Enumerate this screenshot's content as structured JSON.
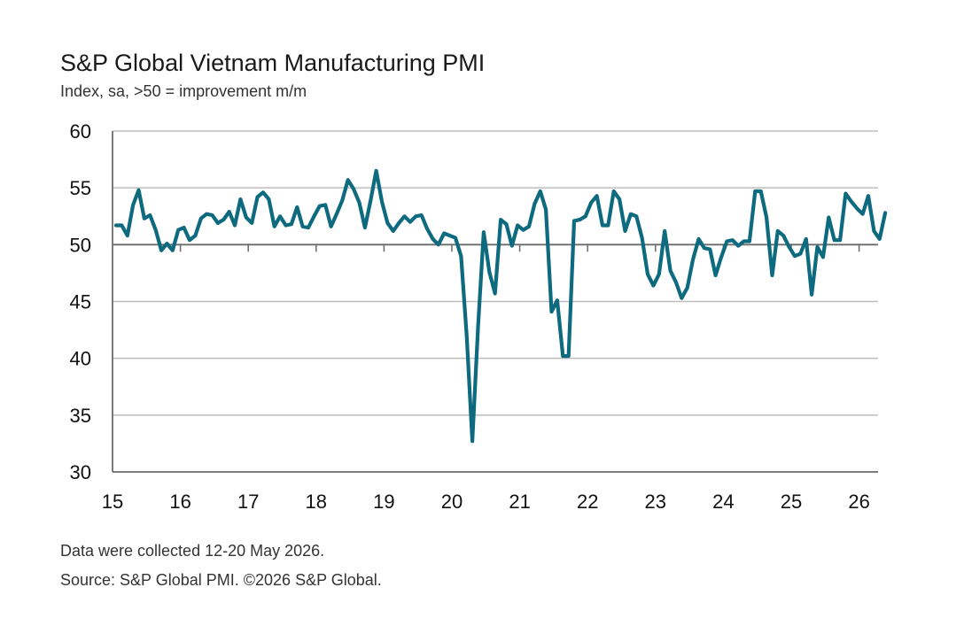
{
  "chart_data": {
    "type": "line",
    "title": "S&P Global Vietnam Manufacturing PMI",
    "subtitle": "Index, sa, >50 = improvement m/m",
    "footnote": "Data were collected 12-20 May 2026.",
    "source": "Source: S&P Global PMI. ©2026 S&P Global.",
    "xlabel": "",
    "ylabel": "",
    "ylim": [
      30,
      60
    ],
    "y_ticks": [
      60,
      55,
      50,
      45,
      40,
      35,
      30
    ],
    "x_ticks": [
      "15",
      "16",
      "17",
      "18",
      "19",
      "20",
      "21",
      "22",
      "23",
      "24",
      "25",
      "26"
    ],
    "x_range": [
      "2015-01",
      "2026-05"
    ],
    "grid": "horizontal",
    "legend": "none",
    "line_color": "#0e6a7e",
    "series": [
      {
        "values": [
          51.7,
          51.7,
          50.8,
          53.5,
          54.8,
          52.3,
          52.6,
          51.3,
          49.5,
          50.1,
          49.5,
          51.3,
          51.5,
          50.4,
          50.8,
          52.3,
          52.7,
          52.6,
          51.9,
          52.2,
          52.9,
          51.7,
          54.0,
          52.4,
          51.9,
          54.2,
          54.6,
          54.0,
          51.6,
          52.5,
          51.7,
          51.8,
          53.3,
          51.6,
          51.5,
          52.5,
          53.4,
          53.5,
          51.6,
          52.7,
          53.9,
          55.7,
          54.9,
          53.7,
          51.5,
          53.9,
          56.5,
          53.8,
          51.9,
          51.2,
          51.9,
          52.5,
          52.0,
          52.5,
          52.6,
          51.4,
          50.5,
          50.0,
          51.0,
          50.8,
          50.6,
          49.0,
          41.9,
          32.7,
          42.7,
          51.1,
          47.6,
          45.7,
          52.2,
          51.8,
          49.9,
          51.7,
          51.3,
          51.6,
          53.6,
          54.7,
          53.1,
          44.1,
          45.1,
          40.2,
          40.2,
          52.1,
          52.2,
          52.5,
          53.7,
          54.3,
          51.7,
          51.7,
          54.7,
          54.0,
          51.2,
          52.7,
          52.5,
          50.6,
          47.4,
          46.4,
          47.4,
          51.2,
          47.7,
          46.7,
          45.3,
          46.2,
          48.7,
          50.5,
          49.7,
          49.6,
          47.3,
          48.9,
          50.3,
          50.4,
          49.9,
          50.3,
          50.3,
          54.7,
          54.7,
          52.4,
          47.3,
          51.2,
          50.8,
          49.8,
          49.0,
          49.2,
          50.5,
          45.6,
          49.8,
          48.9,
          52.4,
          50.4,
          50.4,
          54.5,
          53.8,
          53.2,
          52.7,
          54.3,
          51.2,
          50.5,
          52.8
        ]
      }
    ]
  }
}
